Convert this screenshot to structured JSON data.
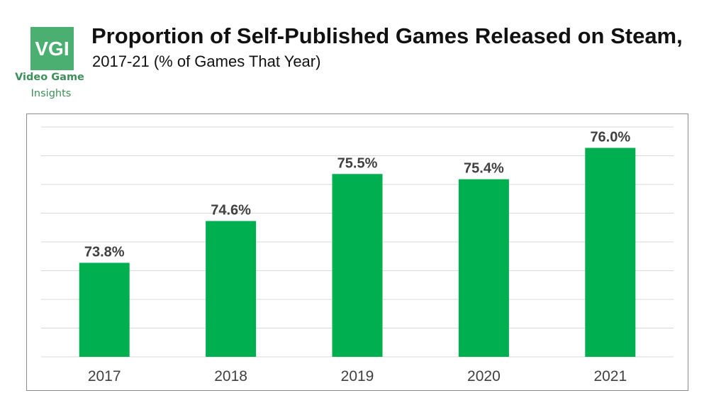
{
  "logo": {
    "mark": "VGI",
    "name_line1": "Video Game",
    "name_line2": "Insights"
  },
  "header": {
    "title": "Proportion of Self-Published Games Released on Steam,",
    "subtitle": "2017-21 (% of Games That Year)"
  },
  "colors": {
    "bar": "#00b050",
    "logo": "#4caf72",
    "grid": "#d9d9d9"
  },
  "chart_data": {
    "type": "bar",
    "categories": [
      "2017",
      "2018",
      "2019",
      "2020",
      "2021"
    ],
    "values": [
      73.8,
      74.6,
      75.5,
      75.4,
      76.0
    ],
    "data_labels": [
      "73.8%",
      "74.6%",
      "75.5%",
      "75.4%",
      "76.0%"
    ],
    "title": "Proportion of Self-Published Games Released on Steam,",
    "subtitle": "2017-21 (% of Games That Year)",
    "xlabel": "",
    "ylabel": "",
    "ylim": [
      72.0,
      76.4
    ],
    "grid": true,
    "legend": "none"
  }
}
